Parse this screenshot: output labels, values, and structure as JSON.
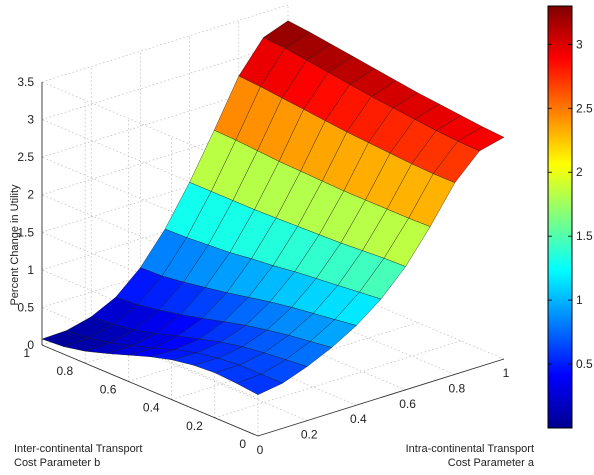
{
  "chart_data": {
    "type": "surface",
    "title": "",
    "zlabel": "Percent Change in Utility",
    "xlabel": [
      "Intra-continental Transport",
      "Cost Parameter a"
    ],
    "ylabel": [
      "Inter-continental Transport",
      "Cost Parameter b"
    ],
    "xlim": [
      0,
      1
    ],
    "ylim": [
      0,
      1
    ],
    "zlim": [
      0,
      3.5
    ],
    "x_ticks": [
      "0",
      "0.2",
      "0.4",
      "0.6",
      "0.8",
      "1"
    ],
    "y_ticks": [
      "0",
      "0.2",
      "0.4",
      "0.6",
      "0.8",
      "1"
    ],
    "z_ticks": [
      "0",
      "0.5",
      "1",
      "1.5",
      "2",
      "2.5",
      "3",
      "3.5"
    ],
    "colorbar": {
      "min": 0,
      "max": 3.3,
      "ticks": [
        "0.5",
        "1",
        "1.5",
        "2",
        "2.5",
        "3"
      ],
      "colormap": "jet"
    },
    "grid": true,
    "surface": {
      "x": [
        0,
        0.1,
        0.2,
        0.3,
        0.4,
        0.5,
        0.6,
        0.7,
        0.8,
        0.9,
        1.0
      ],
      "y": [
        0,
        0.1,
        0.2,
        0.3,
        0.4,
        0.5,
        0.6,
        0.7,
        0.8,
        0.9,
        1.0
      ],
      "z": [
        [
          0.55,
          0.6,
          0.72,
          0.87,
          1.06,
          1.31,
          1.64,
          2.07,
          2.55,
          2.87,
          2.95
        ],
        [
          0.58,
          0.6,
          0.69,
          0.83,
          1.02,
          1.28,
          1.63,
          2.06,
          2.55,
          2.88,
          2.97
        ],
        [
          0.6,
          0.6,
          0.66,
          0.79,
          0.98,
          1.25,
          1.61,
          2.06,
          2.56,
          2.9,
          3.0
        ],
        [
          0.58,
          0.57,
          0.62,
          0.74,
          0.94,
          1.22,
          1.59,
          2.06,
          2.58,
          2.93,
          3.03
        ],
        [
          0.53,
          0.52,
          0.56,
          0.68,
          0.89,
          1.19,
          1.58,
          2.06,
          2.6,
          2.96,
          3.06
        ],
        [
          0.45,
          0.44,
          0.48,
          0.61,
          0.83,
          1.15,
          1.57,
          2.07,
          2.62,
          2.99,
          3.1
        ],
        [
          0.35,
          0.34,
          0.4,
          0.53,
          0.77,
          1.12,
          1.56,
          2.08,
          2.65,
          3.03,
          3.14
        ],
        [
          0.25,
          0.25,
          0.31,
          0.46,
          0.72,
          1.08,
          1.55,
          2.09,
          2.68,
          3.07,
          3.18
        ],
        [
          0.16,
          0.17,
          0.24,
          0.4,
          0.67,
          1.06,
          1.55,
          2.11,
          2.71,
          3.11,
          3.22
        ],
        [
          0.1,
          0.11,
          0.19,
          0.35,
          0.63,
          1.04,
          1.55,
          2.13,
          2.74,
          3.15,
          3.26
        ],
        [
          0.08,
          0.09,
          0.17,
          0.33,
          0.62,
          1.03,
          1.55,
          2.14,
          2.76,
          3.17,
          3.29
        ]
      ]
    }
  }
}
